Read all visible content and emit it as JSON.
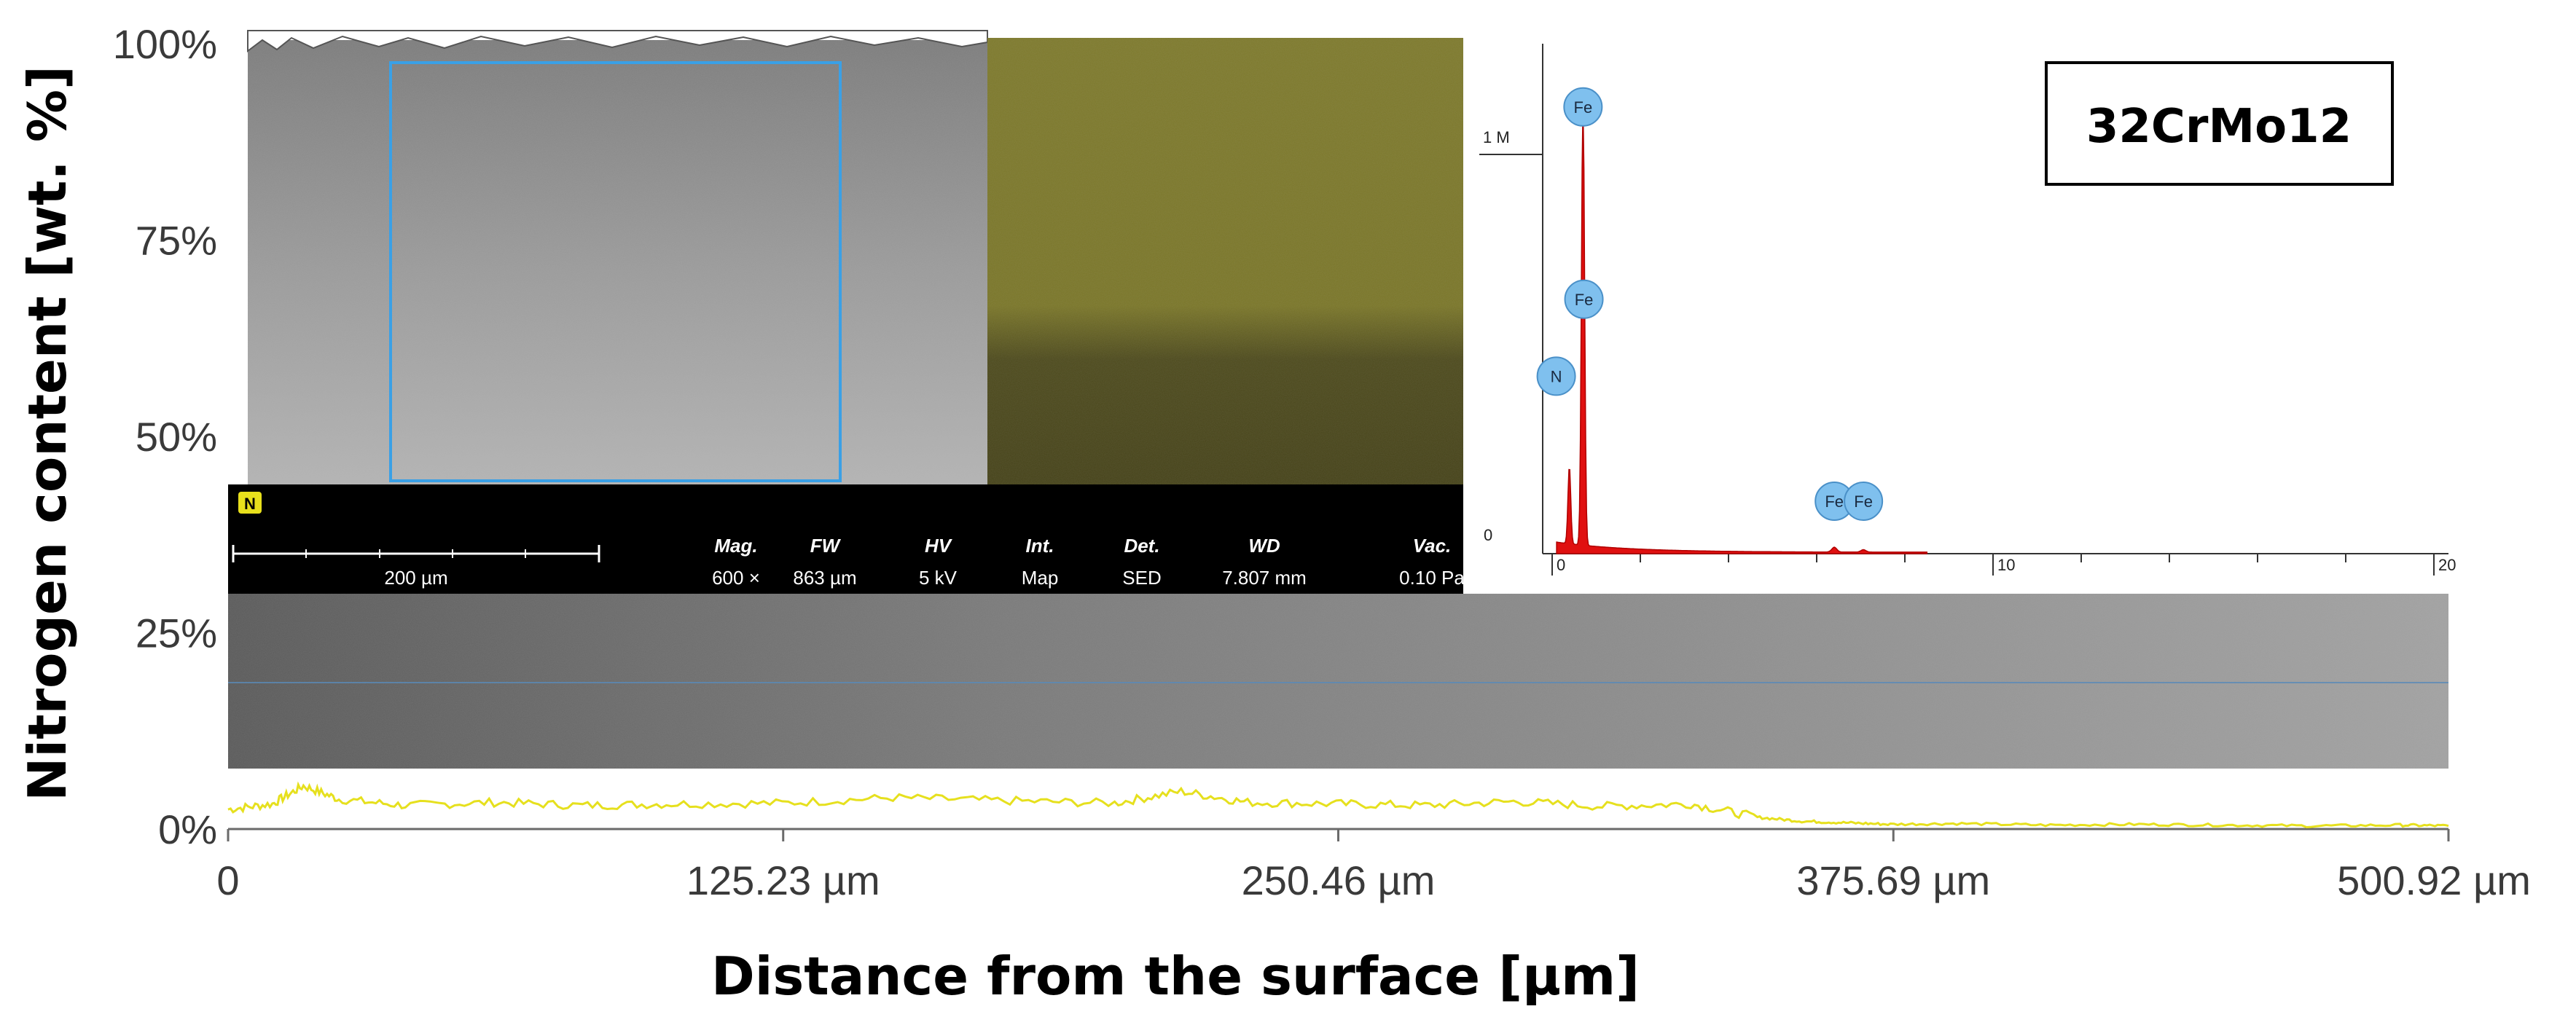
{
  "chart_data": {
    "type": "line",
    "title": "",
    "xlabel": "Distance from the surface [µm]",
    "ylabel": "Nitrogen content [wt. %]",
    "xlim": [
      0,
      500.92
    ],
    "ylim": [
      0,
      100
    ],
    "x_ticks": [
      "0",
      "125.23 µm",
      "250.46 µm",
      "375.69 µm",
      "500.92 µm"
    ],
    "y_ticks": [
      "0%",
      "25%",
      "50%",
      "75%",
      "100%"
    ],
    "series": [
      {
        "name": "N",
        "color": "#e6e01e",
        "x": [
          0,
          10,
          17,
          25,
          40,
          60,
          80,
          100,
          125,
          150,
          175,
          200,
          215,
          230,
          250,
          270,
          290,
          310,
          330,
          345,
          355,
          365,
          375,
          390,
          410,
          430,
          450,
          470,
          490,
          500.92
        ],
        "y": [
          2.5,
          3.2,
          5.5,
          3.8,
          3.0,
          3.4,
          3.0,
          3.2,
          3.3,
          4.0,
          3.6,
          3.3,
          4.8,
          3.4,
          3.2,
          3.0,
          3.5,
          2.9,
          3.2,
          1.5,
          1.0,
          0.8,
          0.6,
          0.7,
          0.5,
          0.6,
          0.5,
          0.4,
          0.5,
          0.4
        ]
      }
    ],
    "annotations": [
      "32CrMo12"
    ]
  },
  "sample_label": "32CrMo12",
  "element_badge": "N",
  "scalebar_label": "200 µm",
  "sem_info": [
    {
      "header": "Mag.",
      "value": "600 ×"
    },
    {
      "header": "FW",
      "value": "863 µm"
    },
    {
      "header": "HV",
      "value": "5 kV"
    },
    {
      "header": "Int.",
      "value": "Map"
    },
    {
      "header": "Det.",
      "value": "SED"
    },
    {
      "header": "WD",
      "value": "7.807 mm"
    },
    {
      "header": "Vac.",
      "value": "0.10 Pa"
    }
  ],
  "edx": {
    "y_top_label": "1 M",
    "y_zero_label": "0",
    "x_labels": [
      "0",
      "10",
      "20"
    ],
    "xlim": [
      0,
      20
    ],
    "peaks": [
      {
        "element": "Fe",
        "energy": 0.7,
        "height": 0.92
      },
      {
        "element": "Fe",
        "energy": 0.72,
        "height": 0.52
      },
      {
        "element": "N",
        "energy": 0.39,
        "height": 0.36
      },
      {
        "element": "Fe",
        "energy": 6.4,
        "height": 0.1
      },
      {
        "element": "Fe",
        "energy": 7.06,
        "height": 0.1
      }
    ]
  }
}
